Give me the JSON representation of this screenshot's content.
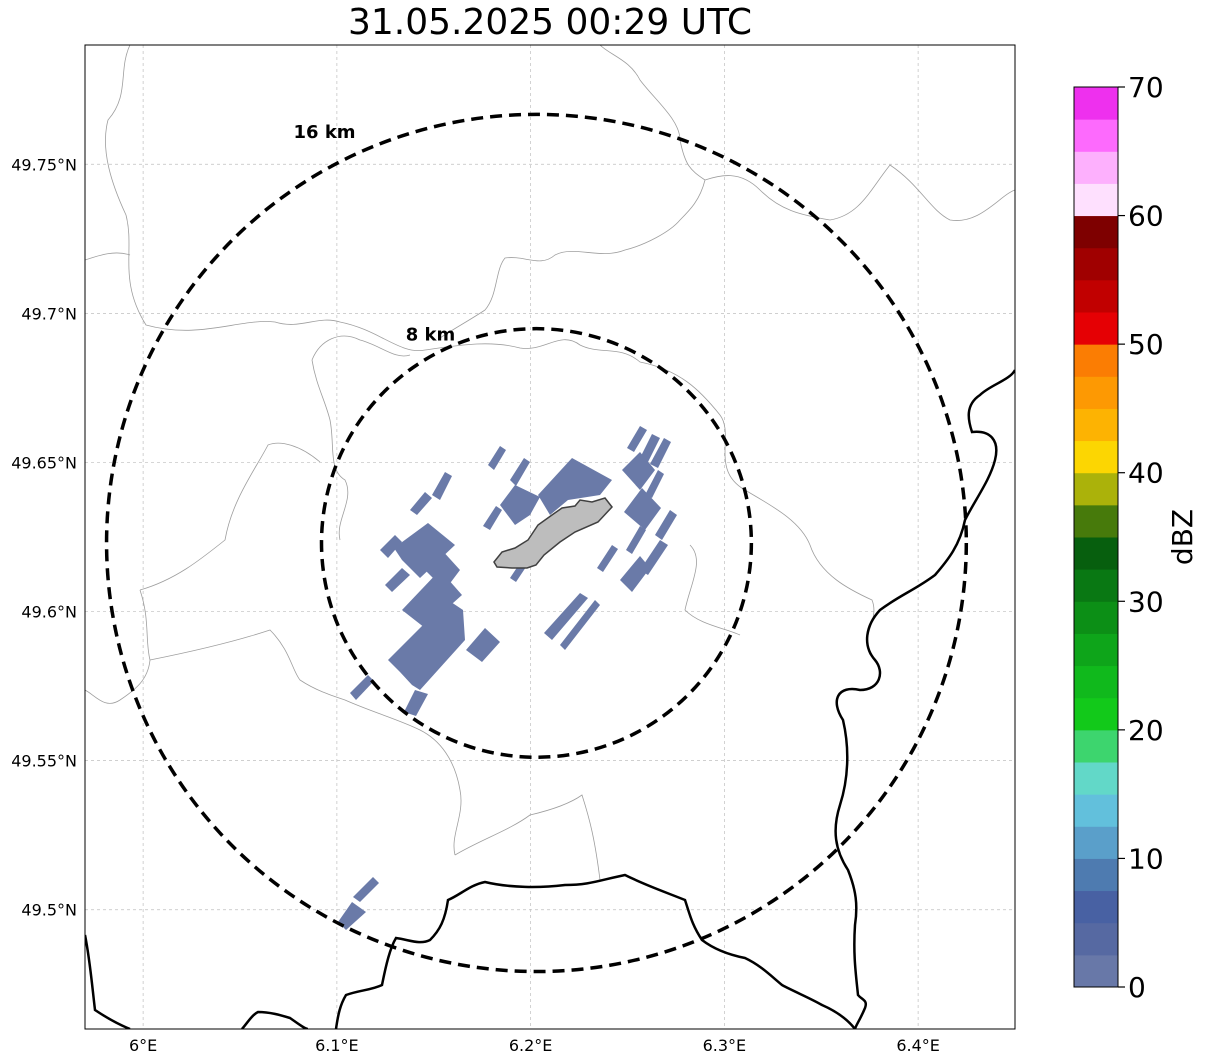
{
  "title": "31.05.2025 00:29 UTC",
  "map": {
    "lon_range": [
      5.97,
      6.45
    ],
    "lat_range": [
      49.46,
      49.79
    ],
    "center": {
      "lon": 6.203,
      "lat": 49.623
    },
    "x_ticks": [
      {
        "value": 6.0,
        "label": "6°E"
      },
      {
        "value": 6.1,
        "label": "6.1°E"
      },
      {
        "value": 6.2,
        "label": "6.2°E"
      },
      {
        "value": 6.3,
        "label": "6.3°E"
      },
      {
        "value": 6.4,
        "label": "6.4°E"
      }
    ],
    "y_ticks": [
      {
        "value": 49.5,
        "label": "49.5°N"
      },
      {
        "value": 49.55,
        "label": "49.55°N"
      },
      {
        "value": 49.6,
        "label": "49.6°N"
      },
      {
        "value": 49.65,
        "label": "49.65°N"
      },
      {
        "value": 49.7,
        "label": "49.7°N"
      },
      {
        "value": 49.75,
        "label": "49.75°N"
      }
    ],
    "gridlines": true,
    "range_rings": [
      {
        "label": "8 km",
        "radius_km": 8
      },
      {
        "label": "16 km",
        "radius_km": 16
      }
    ],
    "echo_dbz": 0,
    "colors": {
      "echo": "#6a7aa8",
      "city": "#bdbdbd",
      "border": "#000000",
      "admin": "#9e9e9e"
    }
  },
  "colorbar": {
    "label": "dBZ",
    "min": 0,
    "max": 70,
    "ticks": [
      {
        "value": 0,
        "label": "0"
      },
      {
        "value": 10,
        "label": "10"
      },
      {
        "value": 20,
        "label": "20"
      },
      {
        "value": 30,
        "label": "30"
      },
      {
        "value": 40,
        "label": "40"
      },
      {
        "value": 50,
        "label": "50"
      },
      {
        "value": 60,
        "label": "60"
      },
      {
        "value": 70,
        "label": "70"
      }
    ],
    "colors": [
      "#6878a8",
      "#5669a2",
      "#4861a3",
      "#4e7bb0",
      "#5a9fca",
      "#62c0dc",
      "#62d8c8",
      "#3dd56e",
      "#12c91a",
      "#10b91c",
      "#0ea51a",
      "#0c8f16",
      "#097813",
      "#075f0e",
      "#477a0b",
      "#abb20a",
      "#fcd602",
      "#fdb302",
      "#fd9903",
      "#fb7d03",
      "#e50004",
      "#c10000",
      "#a00000",
      "#7e0000",
      "#fee0fe",
      "#fdb0fd",
      "#fd6afd",
      "#ee30ee"
    ]
  }
}
